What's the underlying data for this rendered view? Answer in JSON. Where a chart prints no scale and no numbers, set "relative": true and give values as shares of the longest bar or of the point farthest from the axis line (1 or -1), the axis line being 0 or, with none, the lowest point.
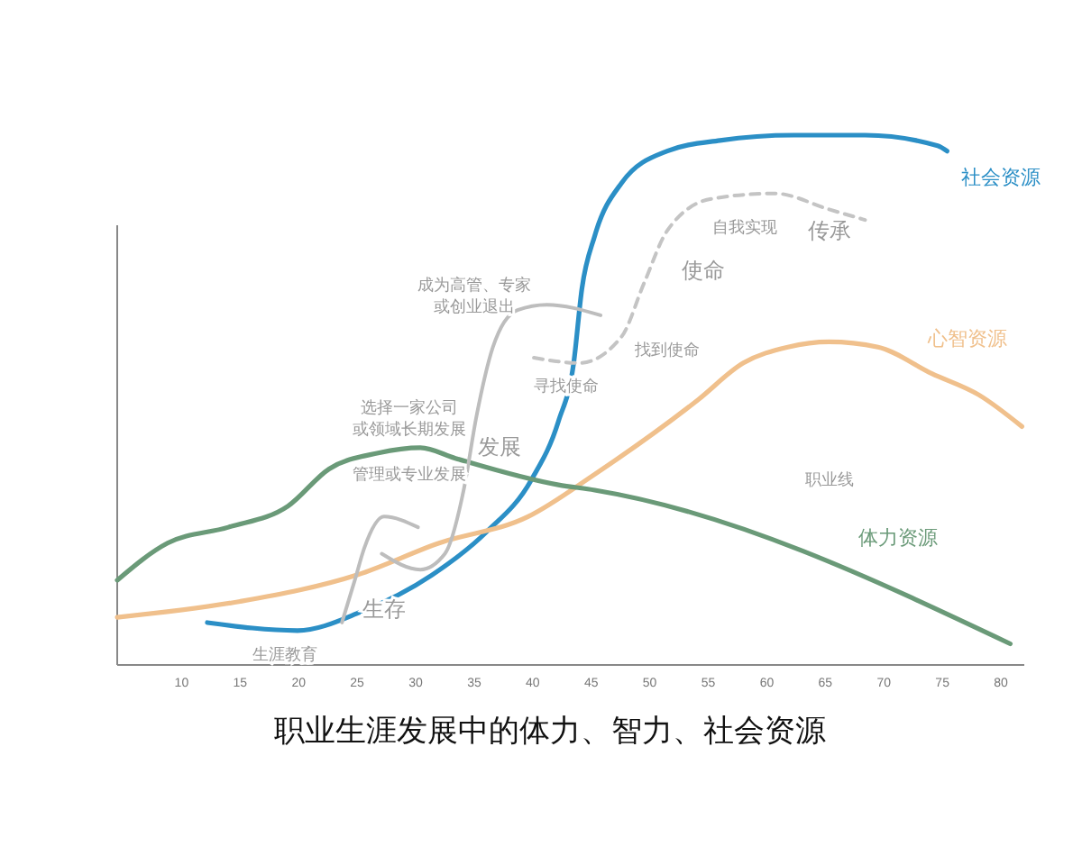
{
  "chart_data": {
    "type": "line",
    "relative": true,
    "title": "职业生涯发展中的体力、智力、社会资源",
    "xlim": [
      4.5,
      82
    ],
    "xticks": [
      10,
      15,
      20,
      25,
      30,
      35,
      40,
      45,
      50,
      55,
      60,
      65,
      70,
      75,
      80
    ],
    "grid": false,
    "line_style": "solid",
    "series": [
      {
        "name": "社会资源",
        "color": "#2b8fc6",
        "x": [
          12.2,
          19.9,
          25.3,
          31.4,
          36,
          39.9,
          42.2,
          43.5,
          44.2,
          45.3,
          47.6,
          51.5,
          56,
          62.3,
          68.4,
          74.6,
          75.4
        ],
        "values": [
          0.08,
          0.065,
          0.1,
          0.17,
          0.25,
          0.35,
          0.46,
          0.57,
          0.71,
          0.81,
          0.91,
          0.97,
          0.99,
          1,
          1,
          0.98,
          0.97
        ]
      },
      {
        "name": "心智资源",
        "color": "#f0c08c",
        "x": [
          4.5,
          15,
          25,
          32,
          39.6,
          45.3,
          54.1,
          58,
          61.8,
          65.3,
          69.5,
          74.1,
          78.1,
          81.8
        ],
        "values": [
          0.09,
          0.12,
          0.17,
          0.23,
          0.28,
          0.36,
          0.5,
          0.57,
          0.6,
          0.61,
          0.6,
          0.55,
          0.51,
          0.45
        ]
      },
      {
        "name": "体力资源",
        "color": "#6a9a78",
        "x": [
          4.5,
          8.8,
          14,
          19.1,
          22.6,
          26.8,
          30.4,
          33.4,
          42.2,
          45.3,
          80.8
        ],
        "values": [
          0.16,
          0.23,
          0.26,
          0.3,
          0.37,
          0.4,
          0.41,
          0.39,
          0.34,
          0.33,
          0.04
        ]
      },
      {
        "color": "#bdbdbd",
        "x": [
          23.7,
          24.8,
          25.6,
          27.3,
          30.2
        ],
        "values": [
          0.08,
          0.16,
          0.22,
          0.28,
          0.26
        ]
      },
      {
        "color": "#bdbdbd",
        "x": [
          27.1,
          30.4,
          32.5,
          34.1,
          35.2,
          36.6,
          38.7,
          41.2,
          45.8
        ],
        "values": [
          0.21,
          0.18,
          0.21,
          0.33,
          0.47,
          0.6,
          0.67,
          0.68,
          0.66
        ]
      },
      {
        "color": "#c4c4c4",
        "line_style": "dashed",
        "x": [
          40.1,
          44,
          47.6,
          49.5,
          51.5,
          55.3,
          60.7,
          65.3,
          68.4
        ],
        "values": [
          0.58,
          0.57,
          0.62,
          0.72,
          0.82,
          0.88,
          0.89,
          0.86,
          0.84
        ]
      }
    ],
    "annotations": [
      "生涯教育",
      "生存",
      "发展",
      "管理或专业发展",
      "选择一家公司或领域长期发展",
      "成为高管、专家或创业退出",
      "寻找使命",
      "使命",
      "找到使命",
      "自我实现",
      "传承",
      "职业线"
    ]
  }
}
